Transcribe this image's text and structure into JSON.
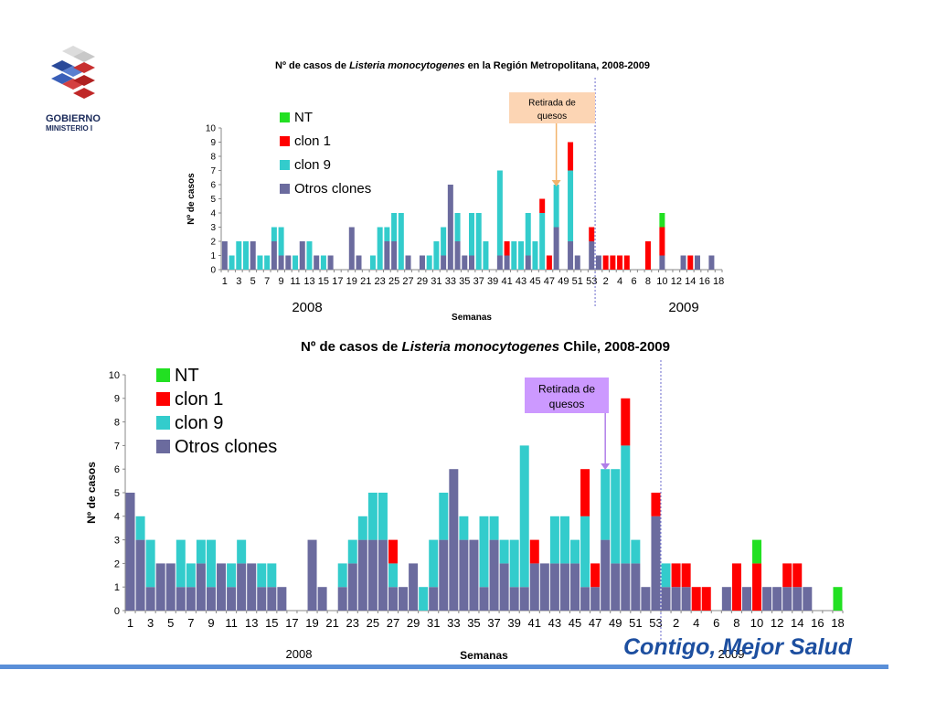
{
  "header": {
    "logo_text_line1": "GOBIERNO",
    "logo_text_line2": "MINISTERIO I"
  },
  "footer": {
    "brand": "Contigo, Mejor Salud"
  },
  "colors": {
    "NT": "#22e022",
    "clon 1": "#ff0000",
    "clon 9": "#33cccc",
    "Otros clones": "#6b6b9e",
    "annotation_top": "#fcd5b4",
    "annotation_bottom": "#cc99ff",
    "arrow_top": "#f2b36b",
    "arrow_bottom": "#b07fe8",
    "divider": "#6a6acc"
  },
  "chart_data": [
    {
      "type": "bar",
      "stacked": true,
      "title_prefix": "Nº de casos de ",
      "title_species": "Listeria monocytogenes",
      "title_suffix": " en la Región Metropolitana, 2008-2009",
      "xlabel": "Semanas",
      "ylabel": "Nº de casos",
      "ylim": [
        0,
        10
      ],
      "yticks": [
        0,
        1,
        2,
        3,
        4,
        5,
        6,
        7,
        8,
        9,
        10
      ],
      "categories": [
        "1",
        "2",
        "3",
        "4",
        "5",
        "6",
        "7",
        "8",
        "9",
        "10",
        "11",
        "12",
        "13",
        "14",
        "15",
        "16",
        "17",
        "18",
        "19",
        "20",
        "21",
        "22",
        "23",
        "24",
        "25",
        "26",
        "27",
        "28",
        "29",
        "30",
        "31",
        "32",
        "33",
        "34",
        "35",
        "36",
        "37",
        "38",
        "39",
        "40",
        "41",
        "42",
        "43",
        "44",
        "45",
        "46",
        "47",
        "48",
        "49",
        "50",
        "51",
        "52",
        "53",
        "1",
        "2",
        "3",
        "4",
        "5",
        "6",
        "7",
        "8",
        "9",
        "10",
        "11",
        "12",
        "13",
        "14",
        "15",
        "16",
        "17",
        "18"
      ],
      "tick_labels": [
        "1",
        "3",
        "5",
        "7",
        "9",
        "11",
        "13",
        "15",
        "17",
        "19",
        "21",
        "23",
        "25",
        "27",
        "29",
        "31",
        "33",
        "35",
        "37",
        "39",
        "41",
        "43",
        "45",
        "47",
        "49",
        "51",
        "53",
        "2",
        "4",
        "6",
        "8",
        "10",
        "12",
        "14",
        "16",
        "18"
      ],
      "year_labels": [
        "2008",
        "2009"
      ],
      "legend": [
        "NT",
        "clon 1",
        "clon 9",
        "Otros clones"
      ],
      "legend_position": "top-left",
      "series": [
        {
          "name": "Otros clones",
          "values": [
            2,
            0,
            0,
            0,
            2,
            0,
            0,
            2,
            1,
            1,
            0,
            2,
            0,
            1,
            0,
            1,
            0,
            0,
            3,
            1,
            0,
            0,
            0,
            2,
            2,
            0,
            1,
            0,
            1,
            0,
            0,
            1,
            6,
            2,
            1,
            1,
            0,
            0,
            0,
            1,
            1,
            0,
            0,
            1,
            0,
            0,
            0,
            3,
            0,
            2,
            1,
            0,
            2,
            1,
            0,
            0,
            0,
            0,
            0,
            0,
            0,
            0,
            1,
            0,
            0,
            1,
            0,
            1,
            0,
            1,
            0
          ]
        },
        {
          "name": "clon 9",
          "values": [
            0,
            1,
            2,
            2,
            0,
            1,
            1,
            1,
            2,
            0,
            1,
            0,
            2,
            0,
            1,
            0,
            0,
            0,
            0,
            0,
            0,
            1,
            3,
            1,
            2,
            4,
            0,
            0,
            0,
            1,
            2,
            2,
            0,
            2,
            0,
            3,
            4,
            2,
            0,
            6,
            0,
            2,
            2,
            3,
            2,
            4,
            0,
            3,
            0,
            5,
            0,
            0,
            0,
            0,
            0,
            0,
            0,
            0,
            0,
            0,
            0,
            0,
            0,
            0,
            0,
            0,
            0,
            0,
            0,
            0,
            0
          ]
        },
        {
          "name": "clon 1",
          "values": [
            0,
            0,
            0,
            0,
            0,
            0,
            0,
            0,
            0,
            0,
            0,
            0,
            0,
            0,
            0,
            0,
            0,
            0,
            0,
            0,
            0,
            0,
            0,
            0,
            0,
            0,
            0,
            0,
            0,
            0,
            0,
            0,
            0,
            0,
            0,
            0,
            0,
            0,
            0,
            0,
            1,
            0,
            0,
            0,
            0,
            1,
            1,
            0,
            0,
            2,
            0,
            0,
            1,
            0,
            1,
            1,
            1,
            1,
            0,
            0,
            2,
            0,
            2,
            0,
            0,
            0,
            1,
            0,
            0,
            0,
            0
          ]
        },
        {
          "name": "NT",
          "values": [
            0,
            0,
            0,
            0,
            0,
            0,
            0,
            0,
            0,
            0,
            0,
            0,
            0,
            0,
            0,
            0,
            0,
            0,
            0,
            0,
            0,
            0,
            0,
            0,
            0,
            0,
            0,
            0,
            0,
            0,
            0,
            0,
            0,
            0,
            0,
            0,
            0,
            0,
            0,
            0,
            0,
            0,
            0,
            0,
            0,
            0,
            0,
            0,
            0,
            0,
            0,
            0,
            0,
            0,
            0,
            0,
            0,
            0,
            0,
            0,
            0,
            0,
            1,
            0,
            0,
            0,
            0,
            0,
            0,
            0,
            0
          ]
        }
      ],
      "annotation": {
        "text_line1": "Retirada de",
        "text_line2": "quesos",
        "arrow_category_index": 47,
        "arrow_value": 6
      },
      "divider_after_index": 52
    },
    {
      "type": "bar",
      "stacked": true,
      "title_prefix": "Nº de casos de ",
      "title_species": "Listeria monocytogenes",
      "title_suffix": " Chile, 2008-2009",
      "xlabel": "Semanas",
      "ylabel": "Nº de casos",
      "ylim": [
        0,
        10
      ],
      "yticks": [
        0,
        1,
        2,
        3,
        4,
        5,
        6,
        7,
        8,
        9,
        10
      ],
      "categories": [
        "1",
        "2",
        "3",
        "4",
        "5",
        "6",
        "7",
        "8",
        "9",
        "10",
        "11",
        "12",
        "13",
        "14",
        "15",
        "16",
        "17",
        "18",
        "19",
        "20",
        "21",
        "22",
        "23",
        "24",
        "25",
        "26",
        "27",
        "28",
        "29",
        "30",
        "31",
        "32",
        "33",
        "34",
        "35",
        "36",
        "37",
        "38",
        "39",
        "40",
        "41",
        "42",
        "43",
        "44",
        "45",
        "46",
        "47",
        "48",
        "49",
        "50",
        "51",
        "52",
        "53",
        "1",
        "2",
        "3",
        "4",
        "5",
        "6",
        "7",
        "8",
        "9",
        "10",
        "11",
        "12",
        "13",
        "14",
        "15",
        "16",
        "17",
        "18"
      ],
      "tick_labels": [
        "1",
        "3",
        "5",
        "7",
        "9",
        "11",
        "13",
        "15",
        "17",
        "19",
        "21",
        "23",
        "25",
        "27",
        "29",
        "31",
        "33",
        "35",
        "37",
        "39",
        "41",
        "43",
        "45",
        "47",
        "49",
        "51",
        "53",
        "2",
        "4",
        "6",
        "8",
        "10",
        "12",
        "14",
        "16",
        "18"
      ],
      "year_labels": [
        "2008",
        "2009"
      ],
      "legend": [
        "NT",
        "clon 1",
        "clon 9",
        "Otros clones"
      ],
      "legend_position": "top-left",
      "series": [
        {
          "name": "Otros clones",
          "values": [
            5,
            3,
            1,
            2,
            2,
            1,
            1,
            2,
            1,
            2,
            1,
            2,
            2,
            1,
            1,
            1,
            0,
            0,
            3,
            1,
            0,
            1,
            2,
            3,
            3,
            3,
            1,
            1,
            2,
            0,
            1,
            3,
            6,
            3,
            3,
            1,
            3,
            2,
            1,
            1,
            2,
            2,
            2,
            2,
            2,
            1,
            1,
            3,
            2,
            2,
            2,
            1,
            4,
            1,
            1,
            1,
            0,
            0,
            0,
            1,
            0,
            1,
            0,
            1,
            1,
            1,
            1,
            1,
            0,
            0,
            0
          ]
        },
        {
          "name": "clon 9",
          "values": [
            0,
            1,
            2,
            0,
            0,
            2,
            1,
            1,
            2,
            0,
            1,
            1,
            0,
            1,
            1,
            0,
            0,
            0,
            0,
            0,
            0,
            1,
            1,
            1,
            2,
            2,
            1,
            0,
            0,
            1,
            2,
            2,
            0,
            1,
            0,
            3,
            1,
            1,
            2,
            6,
            0,
            0,
            2,
            2,
            1,
            3,
            0,
            3,
            4,
            5,
            1,
            0,
            0,
            1,
            0,
            0,
            0,
            0,
            0,
            0,
            0,
            0,
            0,
            0,
            0,
            0,
            0,
            0,
            0,
            0,
            0
          ]
        },
        {
          "name": "clon 1",
          "values": [
            0,
            0,
            0,
            0,
            0,
            0,
            0,
            0,
            0,
            0,
            0,
            0,
            0,
            0,
            0,
            0,
            0,
            0,
            0,
            0,
            0,
            0,
            0,
            0,
            0,
            0,
            1,
            0,
            0,
            0,
            0,
            0,
            0,
            0,
            0,
            0,
            0,
            0,
            0,
            0,
            1,
            0,
            0,
            0,
            0,
            2,
            1,
            0,
            0,
            2,
            0,
            0,
            1,
            0,
            1,
            1,
            1,
            1,
            0,
            0,
            2,
            0,
            2,
            0,
            0,
            1,
            1,
            0,
            0,
            0,
            0
          ]
        },
        {
          "name": "NT",
          "values": [
            0,
            0,
            0,
            0,
            0,
            0,
            0,
            0,
            0,
            0,
            0,
            0,
            0,
            0,
            0,
            0,
            0,
            0,
            0,
            0,
            0,
            0,
            0,
            0,
            0,
            0,
            0,
            0,
            0,
            0,
            0,
            0,
            0,
            0,
            0,
            0,
            0,
            0,
            0,
            0,
            0,
            0,
            0,
            0,
            0,
            0,
            0,
            0,
            0,
            0,
            0,
            0,
            0,
            0,
            0,
            0,
            0,
            0,
            0,
            0,
            0,
            0,
            1,
            0,
            0,
            0,
            0,
            0,
            0,
            0,
            1
          ]
        }
      ],
      "annotation": {
        "text_line1": "Retirada de",
        "text_line2": "quesos",
        "arrow_category_index": 47,
        "arrow_value": 6
      },
      "divider_after_index": 52
    }
  ]
}
